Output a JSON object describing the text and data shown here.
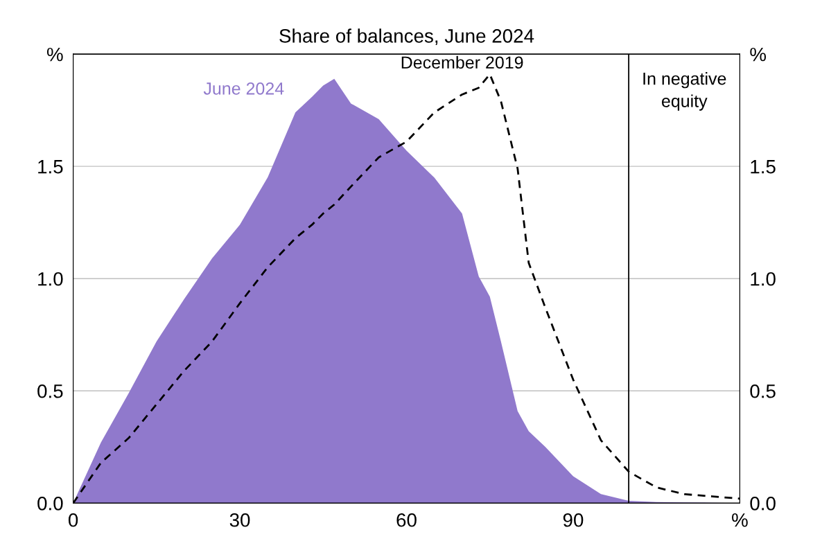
{
  "chart_data": {
    "type": "area",
    "title": "Share of balances, June 2024",
    "x": [
      0,
      5,
      10,
      15,
      20,
      25,
      30,
      35,
      40,
      43,
      45,
      47,
      50,
      55,
      60,
      65,
      70,
      73,
      75,
      77,
      80,
      82,
      85,
      90,
      95,
      100,
      105,
      110,
      115,
      120
    ],
    "series": [
      {
        "name": "June 2024",
        "color": "#9079cc",
        "values": [
          0,
          0.27,
          0.49,
          0.72,
          0.91,
          1.09,
          1.24,
          1.45,
          1.74,
          1.81,
          1.86,
          1.89,
          1.78,
          1.71,
          1.57,
          1.45,
          1.29,
          1.01,
          0.92,
          0.72,
          0.41,
          0.32,
          0.25,
          0.12,
          0.04,
          0.01,
          0.005,
          0.003,
          0.002,
          0.0
        ]
      },
      {
        "name": "December 2019",
        "type": "line",
        "color": "#000000",
        "line_style": "dashed",
        "values": [
          0,
          0.18,
          0.29,
          0.44,
          0.59,
          0.72,
          0.89,
          1.05,
          1.18,
          1.24,
          1.29,
          1.33,
          1.41,
          1.54,
          1.61,
          1.74,
          1.82,
          1.85,
          1.91,
          1.79,
          1.49,
          1.07,
          0.87,
          0.55,
          0.28,
          0.14,
          0.07,
          0.04,
          0.03,
          0.02
        ]
      }
    ],
    "xlim": [
      0,
      120
    ],
    "xticks": [
      0,
      30,
      60,
      90,
      {
        "value": 120,
        "label": "%"
      }
    ],
    "ylim": [
      0,
      2
    ],
    "yticks": [
      {
        "value": 0,
        "label": "0.0"
      },
      {
        "value": 0.5,
        "label": "0.5"
      },
      {
        "value": 1,
        "label": "1.0"
      },
      {
        "value": 1.5,
        "label": "1.5"
      },
      {
        "value": 2,
        "label": "%"
      }
    ],
    "y2lim": [
      0,
      2
    ],
    "y2ticks": [
      {
        "value": 0,
        "label": "0.0"
      },
      {
        "value": 0.5,
        "label": "0.5"
      },
      {
        "value": 1,
        "label": "1.0"
      },
      {
        "value": 1.5,
        "label": "1.5"
      },
      {
        "value": 2,
        "label": "%"
      }
    ],
    "ref_lines": [
      {
        "axis": "x",
        "value": 100,
        "label": "In negative\nequity",
        "color": "#000000",
        "line_style": "solid"
      }
    ],
    "grid": "y",
    "legend": false
  }
}
